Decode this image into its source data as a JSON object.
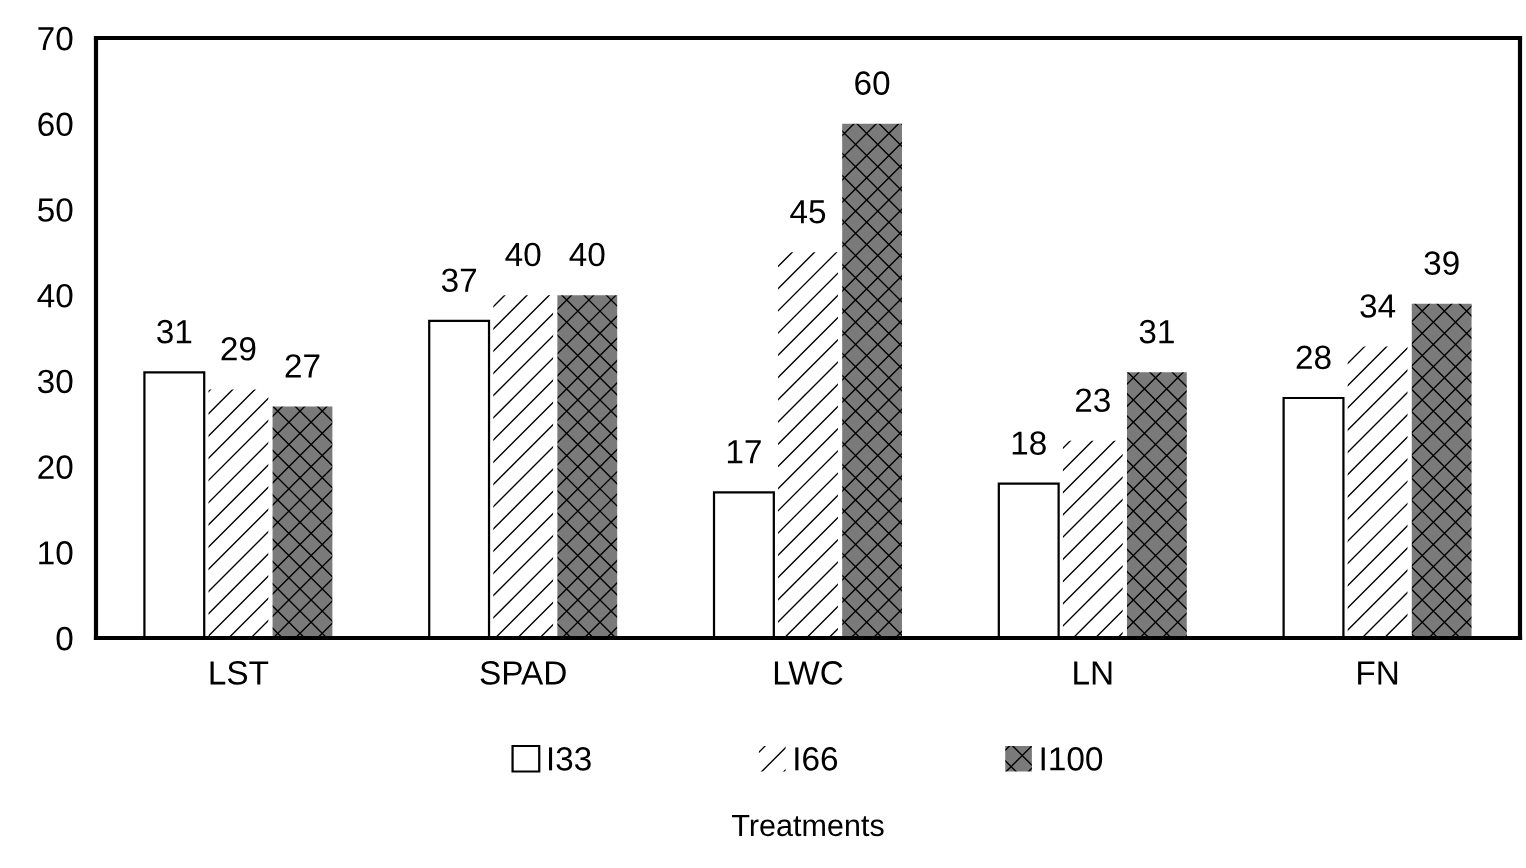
{
  "chart_data": {
    "type": "bar",
    "xlabel": "Treatments",
    "categories": [
      "LST",
      "SPAD",
      "LWC",
      "LN",
      "FN"
    ],
    "series": [
      {
        "name": "I33",
        "color": "#ffffff",
        "values": [
          31,
          37,
          17,
          18,
          28
        ]
      },
      {
        "name": "I66",
        "color": "#ffffff",
        "values": [
          29,
          40,
          45,
          23,
          34
        ]
      },
      {
        "name": "I100",
        "color": "#7a7a7a",
        "values": [
          27,
          40,
          60,
          31,
          39
        ]
      }
    ],
    "ylim": [
      0,
      70
    ],
    "yticks": [
      0,
      10,
      20,
      30,
      40,
      50,
      60,
      70
    ],
    "data_labels": true,
    "grid": false,
    "legend": "bottom"
  }
}
